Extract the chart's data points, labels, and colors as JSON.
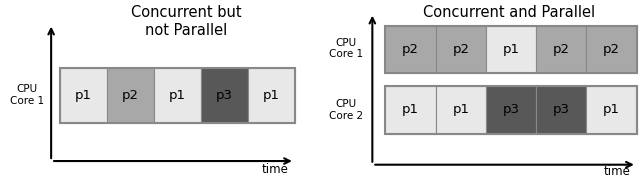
{
  "left_title": "Concurrent but\nnot Parallel",
  "right_title": "Concurrent and Parallel",
  "left_cpu_label": "CPU\nCore 1",
  "right_cpu1_label": "CPU\nCore 1",
  "right_cpu2_label": "CPU\nCore 2",
  "time_label": "time",
  "left_blocks": [
    "p1",
    "p2",
    "p1",
    "p3",
    "p1"
  ],
  "right_core1_blocks": [
    "p2",
    "p2",
    "p1",
    "p2",
    "p2"
  ],
  "right_core2_blocks": [
    "p1",
    "p1",
    "p3",
    "p3",
    "p1"
  ],
  "p1_color": "#e8e8e8",
  "p2_color": "#a8a8a8",
  "p3_color": "#585858",
  "title_fontsize": 10.5,
  "label_fontsize": 7.5,
  "block_fontsize": 9.5
}
